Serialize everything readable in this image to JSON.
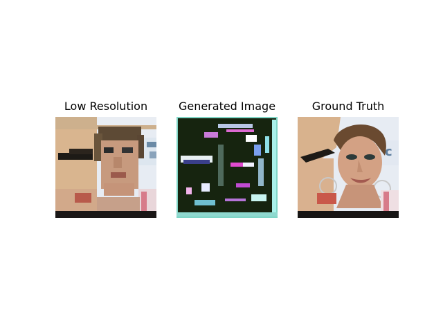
{
  "panels": [
    {
      "title": "Low Resolution",
      "image": "low-resolution-face-photo"
    },
    {
      "title": "Generated Image",
      "image": "generated-face-image-noisy"
    },
    {
      "title": "Ground Truth",
      "image": "ground-truth-face-photo"
    }
  ]
}
